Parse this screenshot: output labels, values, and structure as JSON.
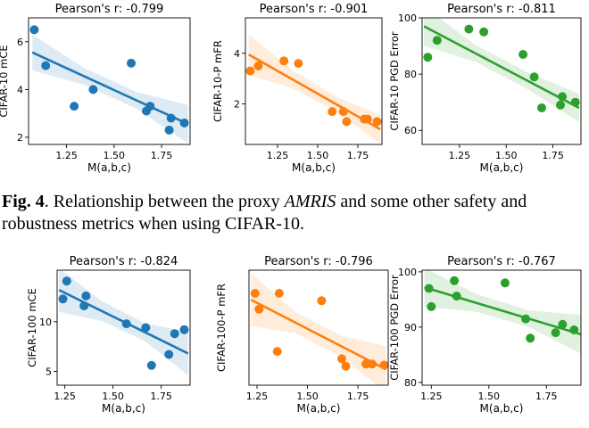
{
  "caption": {
    "label": "Fig. 4",
    "pre": ".   Relationship between the proxy ",
    "symbol": "AMRIS",
    "post": " and some other safety and robustness metrics when using CIFAR-10."
  },
  "chart_data": [
    {
      "type": "scatter",
      "title": "Pearson's r: -0.799",
      "xlabel": "M(a,b,c)",
      "ylabel": "CIFAR-10 mCE",
      "color": "#1f77b4",
      "xlim": [
        1.05,
        1.9
      ],
      "ylim": [
        1.7,
        7.0
      ],
      "xticks": [
        1.25,
        1.5,
        1.75
      ],
      "xticklabels": [
        "1.25",
        "1.50",
        "1.75"
      ],
      "yticks": [
        2,
        4,
        6
      ],
      "yticklabels": [
        "2",
        "4",
        "6"
      ],
      "x": [
        1.08,
        1.14,
        1.29,
        1.39,
        1.59,
        1.67,
        1.69,
        1.79,
        1.8,
        1.87
      ],
      "y": [
        6.5,
        5.0,
        3.3,
        4.0,
        5.1,
        3.1,
        3.3,
        2.3,
        2.8,
        2.6
      ],
      "fit": [
        [
          1.07,
          5.55
        ],
        [
          1.89,
          2.55
        ]
      ],
      "band_halfwidth": [
        0.75,
        0.35,
        0.35,
        0.8
      ]
    },
    {
      "type": "scatter",
      "title": "Pearson's r: -0.901",
      "xlabel": "M(a,b,c)",
      "ylabel": "CIFAR-10-P mFR",
      "color": "#ff7f0e",
      "xlim": [
        1.05,
        1.9
      ],
      "ylim": [
        0.4,
        5.4
      ],
      "xticks": [
        1.25,
        1.5,
        1.75
      ],
      "xticklabels": [
        "1.25",
        "1.50",
        "1.75"
      ],
      "yticks": [
        2,
        4
      ],
      "yticklabels": [
        "2",
        "4"
      ],
      "x": [
        1.08,
        1.13,
        1.29,
        1.38,
        1.59,
        1.66,
        1.68,
        1.79,
        1.81,
        1.87
      ],
      "y": [
        3.3,
        3.5,
        3.7,
        3.6,
        1.7,
        1.7,
        1.3,
        1.4,
        1.4,
        1.3
      ],
      "fit": [
        [
          1.07,
          3.95
        ],
        [
          1.89,
          1.0
        ]
      ],
      "band_halfwidth": [
        0.8,
        0.35,
        0.3,
        0.55
      ]
    },
    {
      "type": "scatter",
      "title": "Pearson's r: -0.811",
      "xlabel": "M(a,b,c)",
      "ylabel": "CIFAR-10 PGD Error",
      "color": "#2ca02c",
      "xlim": [
        1.05,
        1.9
      ],
      "ylim": [
        55,
        100
      ],
      "xticks": [
        1.25,
        1.5,
        1.75
      ],
      "xticklabels": [
        "1.25",
        "1.50",
        "1.75"
      ],
      "yticks": [
        60,
        80,
        100
      ],
      "yticklabels": [
        "60",
        "80",
        "100"
      ],
      "x": [
        1.08,
        1.13,
        1.3,
        1.38,
        1.59,
        1.65,
        1.69,
        1.79,
        1.8,
        1.87
      ],
      "y": [
        86,
        92,
        96,
        95,
        87,
        79,
        68,
        69,
        72,
        70
      ],
      "fit": [
        [
          1.06,
          97
        ],
        [
          1.89,
          68
        ]
      ],
      "band_halfwidth": [
        7,
        3,
        3,
        5
      ]
    },
    {
      "type": "scatter",
      "title": "Pearson's r: -0.824",
      "xlabel": "M(a,b,c)",
      "ylabel": "CIFAR-100 mCE",
      "color": "#1f77b4",
      "xlim": [
        1.21,
        1.9
      ],
      "ylim": [
        3.6,
        15.2
      ],
      "xticks": [
        1.25,
        1.5,
        1.75
      ],
      "xticklabels": [
        "1.25",
        "1.50",
        "1.75"
      ],
      "yticks": [
        5,
        10
      ],
      "yticklabels": [
        "5",
        "10"
      ],
      "x": [
        1.24,
        1.26,
        1.35,
        1.36,
        1.57,
        1.67,
        1.7,
        1.79,
        1.82,
        1.87
      ],
      "y": [
        12.3,
        14.1,
        11.6,
        12.6,
        9.8,
        9.4,
        5.6,
        6.7,
        8.8,
        9.2
      ],
      "fit": [
        [
          1.22,
          13.2
        ],
        [
          1.89,
          6.8
        ]
      ],
      "band_halfwidth": [
        2.2,
        1.0,
        0.9,
        2.2
      ]
    },
    {
      "type": "scatter",
      "title": "Pearson's r: -0.796",
      "xlabel": "M(a,b,c)",
      "ylabel": "CIFAR-100-P mFR",
      "color": "#ff7f0e",
      "xlim": [
        1.21,
        1.9
      ],
      "ylim": [
        3.3,
        14.2
      ],
      "xticks": [
        1.25,
        1.5,
        1.75
      ],
      "xticklabels": [
        "1.25",
        "1.50",
        "1.75"
      ],
      "yticks": [],
      "yticklabels": [],
      "x": [
        1.24,
        1.26,
        1.35,
        1.36,
        1.57,
        1.67,
        1.69,
        1.79,
        1.82,
        1.88
      ],
      "y": [
        12.0,
        10.5,
        6.5,
        12.0,
        11.3,
        5.8,
        5.1,
        5.3,
        5.3,
        5.2
      ],
      "fit": [
        [
          1.22,
          11.4
        ],
        [
          1.89,
          4.8
        ]
      ],
      "band_halfwidth": [
        2.5,
        1.0,
        1.0,
        2.2
      ]
    },
    {
      "type": "scatter",
      "title": "Pearson's r: -0.767",
      "xlabel": "M(a,b,c)",
      "ylabel": "CIFAR-100 PGD Error",
      "color": "#2ca02c",
      "xlim": [
        1.21,
        1.9
      ],
      "ylim": [
        79.5,
        100.3
      ],
      "xticks": [
        1.25,
        1.5,
        1.75
      ],
      "xticklabels": [
        "1.25",
        "1.50",
        "1.75"
      ],
      "yticks": [
        80,
        90,
        100
      ],
      "yticklabels": [
        "80",
        "90",
        "100"
      ],
      "x": [
        1.24,
        1.25,
        1.35,
        1.36,
        1.57,
        1.66,
        1.68,
        1.79,
        1.82,
        1.87
      ],
      "y": [
        97,
        93.7,
        98.4,
        95.6,
        98.0,
        91.5,
        88,
        89,
        90.5,
        89.5
      ],
      "fit": [
        [
          1.22,
          97.2
        ],
        [
          1.9,
          88.7
        ]
      ],
      "band_halfwidth": [
        3.5,
        1.6,
        1.5,
        3.5
      ]
    }
  ]
}
